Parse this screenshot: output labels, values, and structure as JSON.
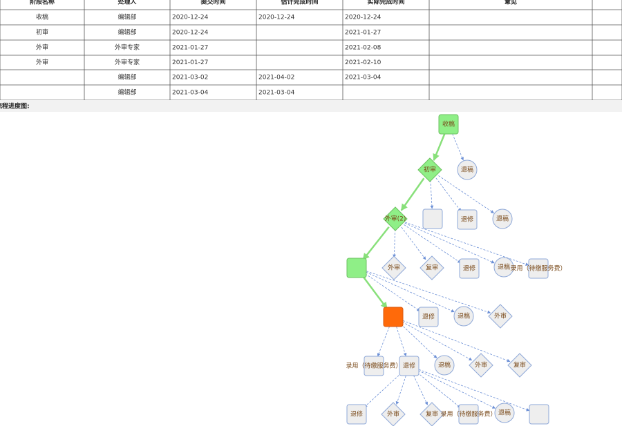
{
  "table": {
    "header": [
      "阶段名称",
      "处理人",
      "提交时间",
      "估计完成时间",
      "实际完成时间",
      "意见"
    ],
    "rows": [
      [
        "收稿",
        "编辑部",
        "2020-12-24",
        "2020-12-24",
        "2020-12-24",
        null
      ],
      [
        "初审",
        "编辑部",
        "2020-12-24",
        null,
        "2021-01-27",
        null
      ],
      [
        "外审",
        "外审专家",
        "2021-01-27",
        null,
        "2021-02-08",
        null
      ],
      [
        "外审",
        "外审专家",
        "2021-01-27",
        null,
        "2021-02-10",
        null
      ],
      [
        null,
        "编辑部",
        "2021-03-02",
        "2021-04-02",
        "2021-03-04",
        null
      ],
      [
        null,
        "编辑部",
        "2021-03-04",
        "2021-03-04",
        null,
        null
      ]
    ]
  },
  "diagram": {
    "title": "流程进度图:",
    "nodes": [
      "收稿",
      "初审",
      "退稿",
      "退修",
      "退稿",
      "外审(2)",
      "外审",
      "复审",
      "退修",
      "退稿",
      "录用（待缴服务费）",
      "退修",
      "退稿",
      "外审",
      "录用（待缴服务费）",
      "退修",
      "退稿",
      "外审",
      "复审",
      "退修",
      "外审",
      "复审",
      "录用（待缴服务费）",
      "退稿"
    ]
  }
}
